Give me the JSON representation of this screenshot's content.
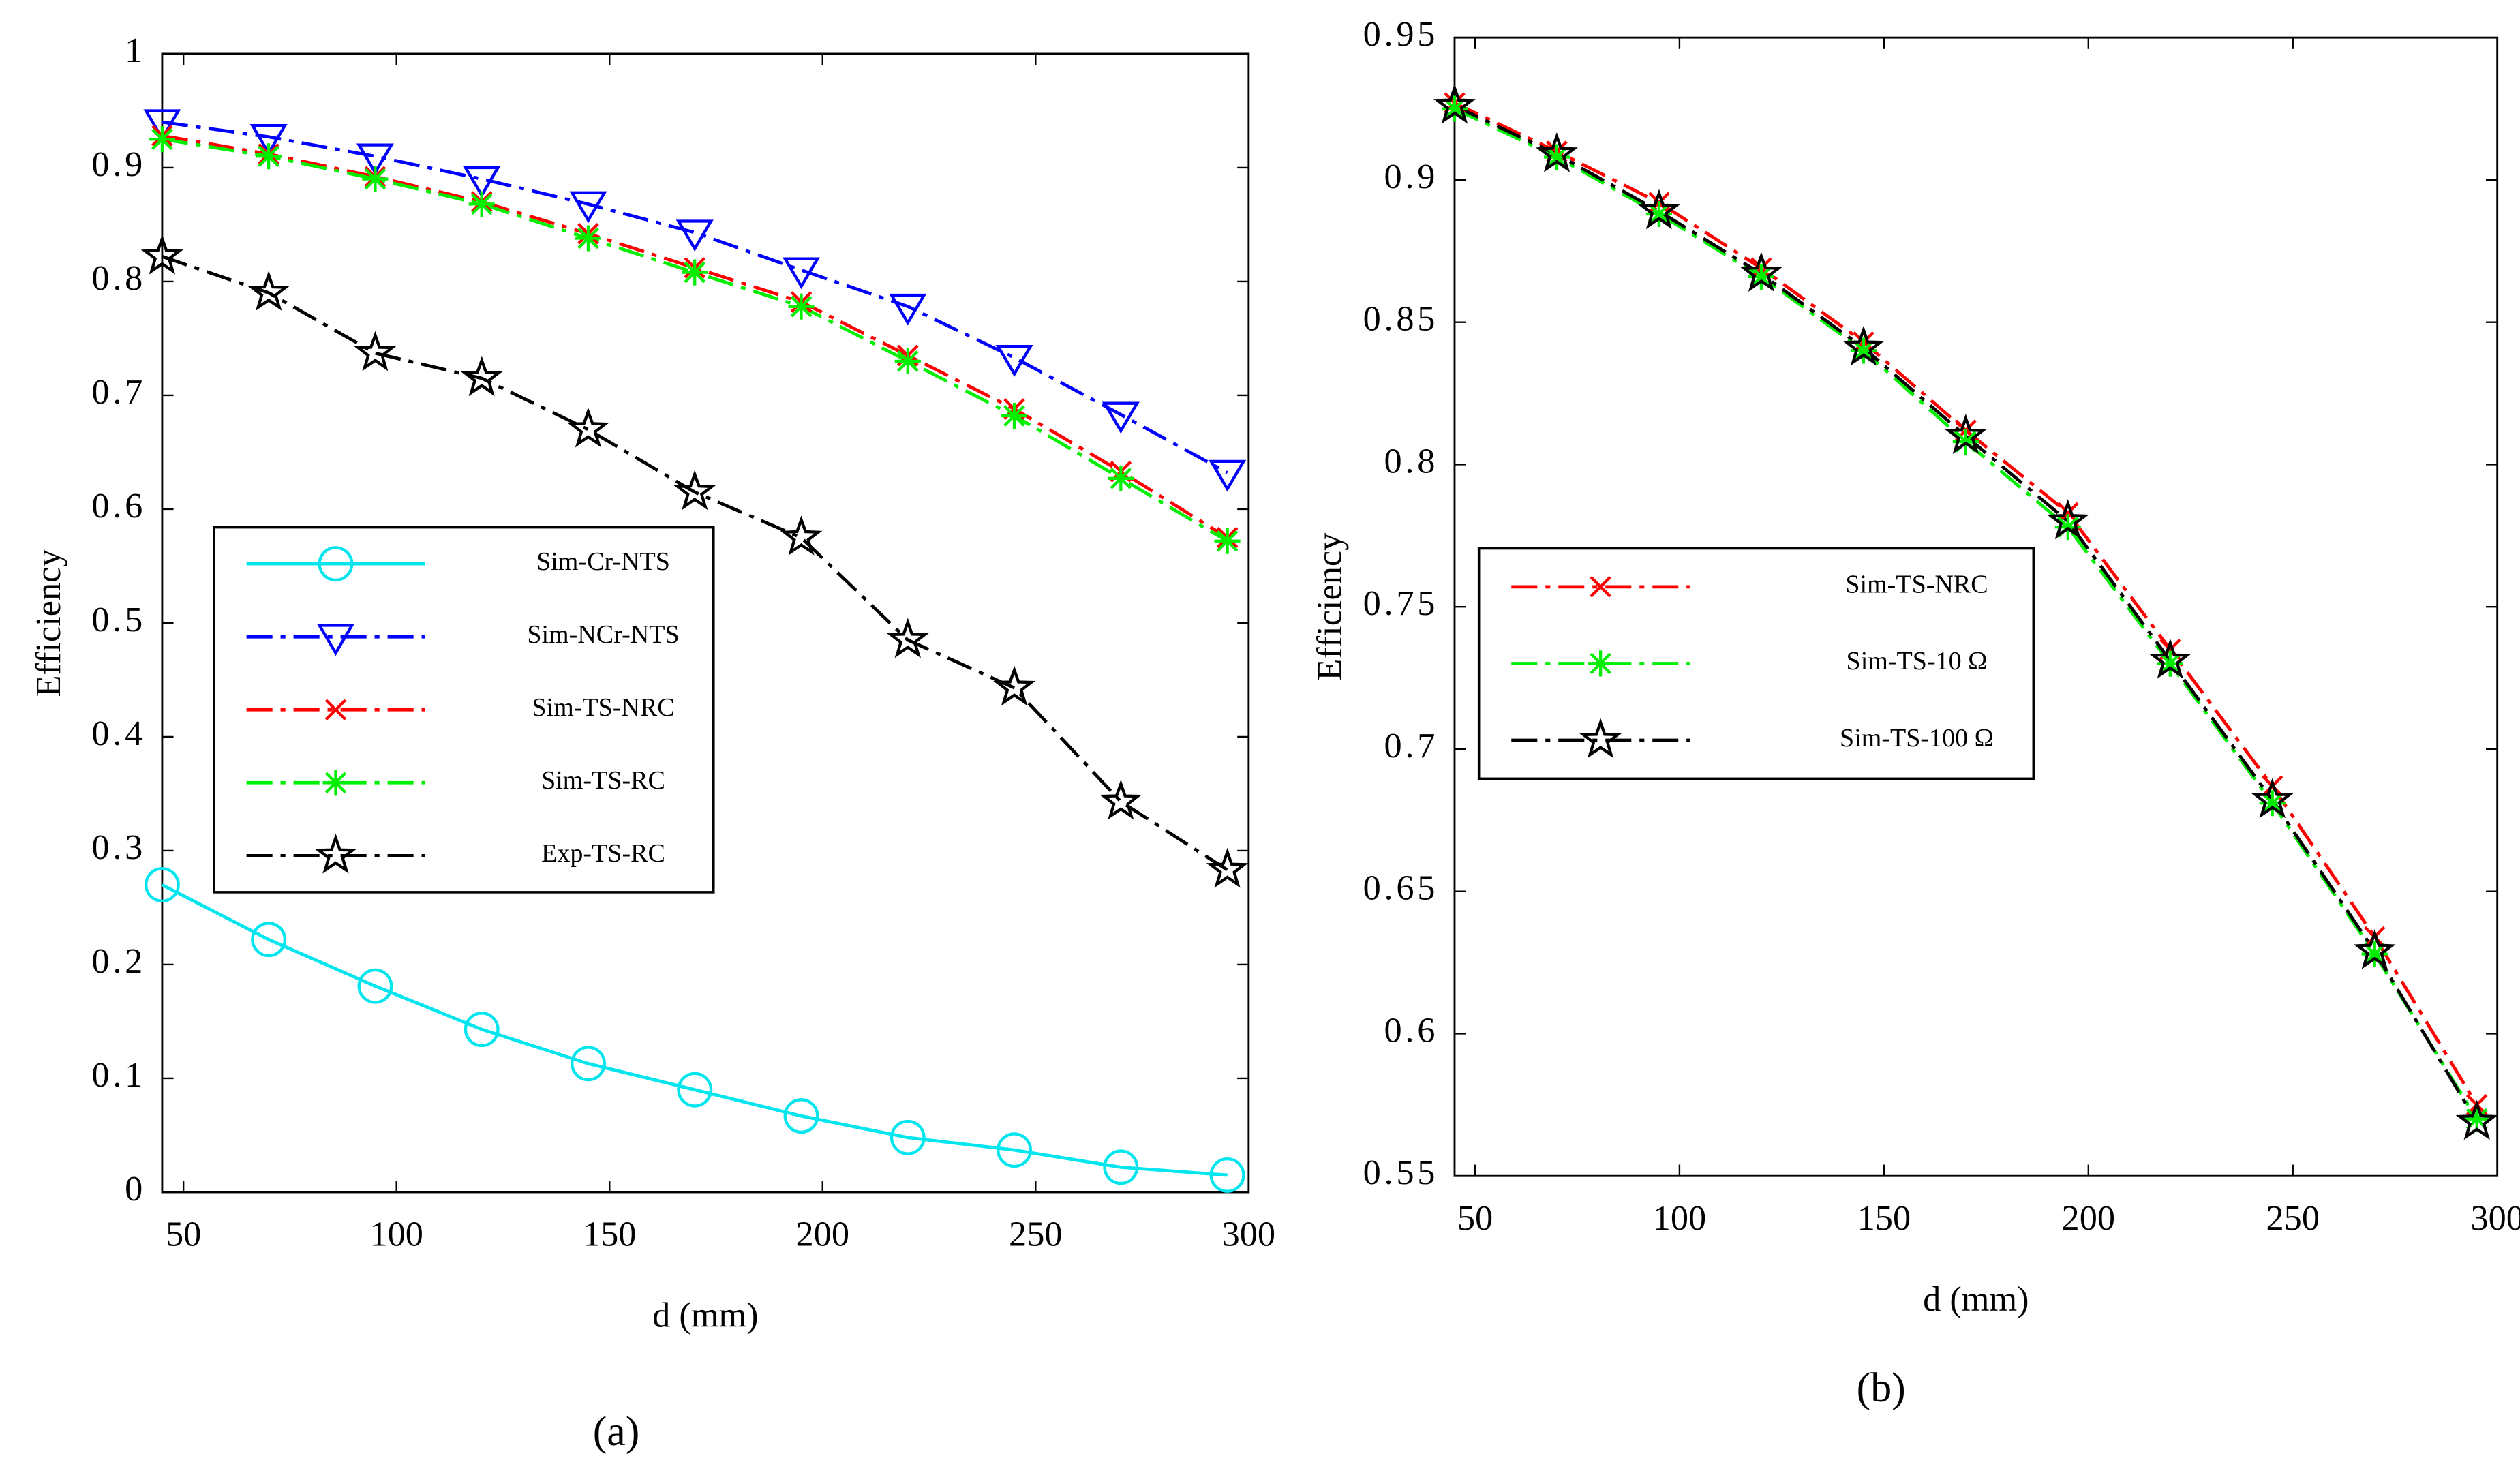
{
  "chart_data": [
    {
      "type": "line",
      "xlabel": "d (mm)",
      "ylabel": "Efficiency",
      "caption": "(a)",
      "x": [
        45,
        70,
        95,
        120,
        145,
        170,
        195,
        220,
        245,
        270,
        295
      ],
      "xlim": [
        45,
        300
      ],
      "xticks": [
        50,
        100,
        150,
        200,
        250,
        300
      ],
      "ylim": [
        0,
        1
      ],
      "yticks": [
        0,
        0.1,
        0.2,
        0.3,
        0.4,
        0.5,
        0.6,
        0.7,
        0.8,
        0.9,
        1
      ],
      "series": [
        {
          "name": "Sim-Cr-NTS",
          "color": "#00e5ee",
          "marker": "circle",
          "linestyle": "solid",
          "values": [
            0.27,
            0.222,
            0.181,
            0.143,
            0.113,
            0.09,
            0.067,
            0.048,
            0.037,
            0.022,
            0.015
          ]
        },
        {
          "name": "Sim-NCr-NTS",
          "color": "#0000ff",
          "marker": "triangle-down",
          "linestyle": "dash-dot",
          "values": [
            0.94,
            0.927,
            0.91,
            0.89,
            0.868,
            0.843,
            0.81,
            0.778,
            0.733,
            0.683,
            0.632
          ]
        },
        {
          "name": "Sim-TS-NRC",
          "color": "#ff0000",
          "marker": "x",
          "linestyle": "dash-dot",
          "values": [
            0.928,
            0.912,
            0.892,
            0.87,
            0.842,
            0.812,
            0.782,
            0.735,
            0.688,
            0.633,
            0.575
          ]
        },
        {
          "name": "Sim-TS-RC",
          "color": "#00ee00",
          "marker": "asterisk",
          "linestyle": "dash-dot",
          "values": [
            0.925,
            0.91,
            0.89,
            0.868,
            0.838,
            0.808,
            0.778,
            0.73,
            0.682,
            0.627,
            0.572
          ]
        },
        {
          "name": "Exp-TS-RC",
          "color": "#000000",
          "marker": "star",
          "linestyle": "dash-dot",
          "values": [
            0.822,
            0.79,
            0.737,
            0.715,
            0.67,
            0.615,
            0.575,
            0.485,
            0.443,
            0.343,
            0.283
          ]
        }
      ]
    },
    {
      "type": "line",
      "xlabel": "d (mm)",
      "ylabel": "Efficiency",
      "caption": "(b)",
      "x": [
        45,
        70,
        95,
        120,
        145,
        170,
        195,
        220,
        245,
        270,
        295
      ],
      "xlim": [
        45,
        300
      ],
      "xticks": [
        50,
        100,
        150,
        200,
        250,
        300
      ],
      "ylim": [
        0.55,
        0.95
      ],
      "yticks": [
        0.55,
        0.6,
        0.65,
        0.7,
        0.75,
        0.8,
        0.85,
        0.9,
        0.95
      ],
      "series": [
        {
          "name": "Sim-TS-NRC",
          "color": "#ff0000",
          "marker": "x",
          "linestyle": "dash-dot",
          "values": [
            0.927,
            0.91,
            0.892,
            0.869,
            0.843,
            0.812,
            0.783,
            0.735,
            0.687,
            0.634,
            0.575
          ]
        },
        {
          "name": "Sim-TS-10 Ω",
          "color": "#00ee00",
          "marker": "asterisk",
          "linestyle": "dash-dot",
          "values": [
            0.925,
            0.908,
            0.888,
            0.866,
            0.84,
            0.808,
            0.778,
            0.73,
            0.681,
            0.628,
            0.57
          ]
        },
        {
          "name": "Sim-TS-100 Ω",
          "color": "#000000",
          "marker": "star",
          "linestyle": "dash-dot",
          "values": [
            0.926,
            0.909,
            0.889,
            0.867,
            0.841,
            0.81,
            0.78,
            0.731,
            0.682,
            0.629,
            0.569
          ]
        }
      ]
    }
  ]
}
